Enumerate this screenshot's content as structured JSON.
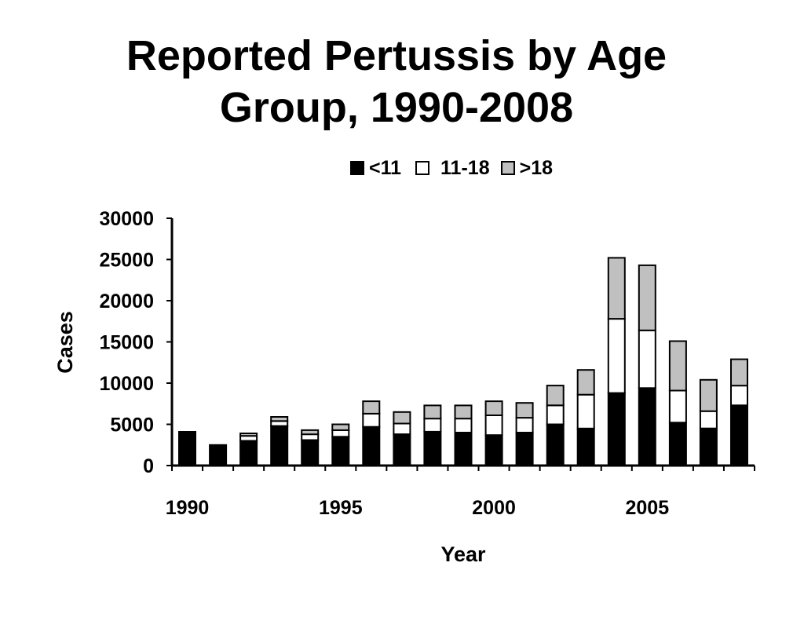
{
  "chart_data": {
    "type": "bar",
    "stacked": true,
    "title_lines": [
      "Reported Pertussis by Age",
      "Group, 1990-2008"
    ],
    "xlabel": "Year",
    "ylabel": "Cases",
    "ylim": [
      0,
      30000
    ],
    "y_ticks": [
      "0",
      "5000",
      "10000",
      "15000",
      "20000",
      "25000",
      "30000"
    ],
    "x_tick_labels": [
      {
        "label": "1990",
        "year": 1990
      },
      {
        "label": "1995",
        "year": 1995
      },
      {
        "label": "2000",
        "year": 2000
      },
      {
        "label": "2005",
        "year": 2005
      }
    ],
    "categories": [
      1990,
      1991,
      1992,
      1993,
      1994,
      1995,
      1996,
      1997,
      1998,
      1999,
      2000,
      2001,
      2002,
      2003,
      2004,
      2005,
      2006,
      2007,
      2008
    ],
    "series": [
      {
        "name": "<11",
        "color": "#000000",
        "values": [
          4100,
          2500,
          3000,
          4800,
          3100,
          3500,
          4700,
          3800,
          4100,
          4000,
          3700,
          4000,
          5000,
          4500,
          8800,
          9400,
          5200,
          4500,
          7300
        ]
      },
      {
        "name": "11-18",
        "color": "#ffffff",
        "values": [
          0,
          0,
          600,
          600,
          700,
          800,
          1600,
          1300,
          1600,
          1700,
          2400,
          1800,
          2300,
          4100,
          9000,
          7000,
          3900,
          2100,
          2400
        ]
      },
      {
        "name": ">18",
        "color": "#c0c0c0",
        "values": [
          0,
          0,
          300,
          500,
          500,
          700,
          1500,
          1400,
          1600,
          1600,
          1700,
          1800,
          2400,
          3000,
          7400,
          7900,
          6000,
          3800,
          3200
        ]
      }
    ],
    "legend_position": "top",
    "grid": false
  }
}
